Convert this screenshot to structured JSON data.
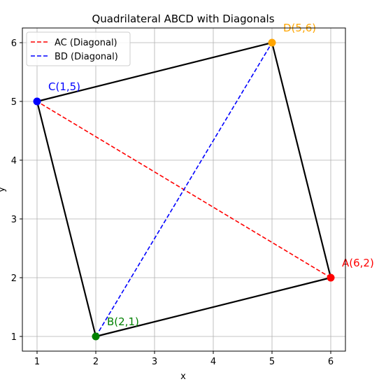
{
  "chart_data": {
    "type": "scatter",
    "title": "Quadrilateral ABCD with Diagonals",
    "xlabel": "x",
    "ylabel": "y",
    "xlim": [
      0.75,
      6.25
    ],
    "ylim": [
      0.75,
      6.25
    ],
    "xticks": [
      1,
      2,
      3,
      4,
      5,
      6
    ],
    "yticks": [
      1,
      2,
      3,
      4,
      5,
      6
    ],
    "grid": true,
    "legend_position": "top-left",
    "points": [
      {
        "id": "A",
        "label": "A(6,2)",
        "x": 6,
        "y": 2,
        "color": "#ff0000"
      },
      {
        "id": "B",
        "label": "B(2,1)",
        "x": 2,
        "y": 1,
        "color": "#008000"
      },
      {
        "id": "C",
        "label": "C(1,5)",
        "x": 1,
        "y": 5,
        "color": "#0000ff"
      },
      {
        "id": "D",
        "label": "D(5,6)",
        "x": 5,
        "y": 6,
        "color": "#ffa500"
      }
    ],
    "polygon_order": [
      "A",
      "B",
      "C",
      "D"
    ],
    "polygon_color": "#000000",
    "series": [
      {
        "name": "AC (Diagonal)",
        "from": "A",
        "to": "C",
        "color": "#ff0000",
        "style": "dashed"
      },
      {
        "name": "BD (Diagonal)",
        "from": "B",
        "to": "D",
        "color": "#0000ff",
        "style": "dashed"
      }
    ]
  }
}
